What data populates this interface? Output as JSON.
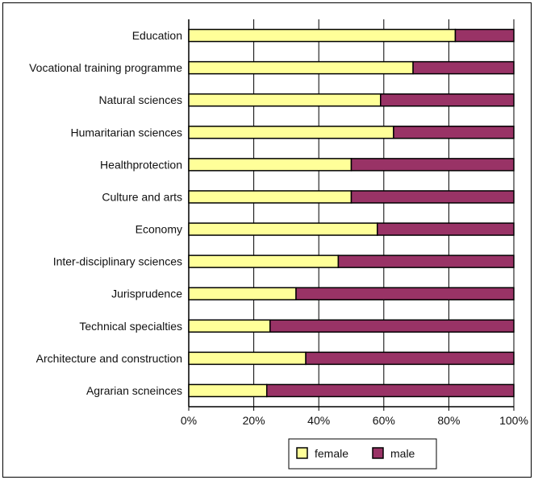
{
  "chart_data": {
    "type": "bar",
    "orientation": "horizontal",
    "stacked": "percent",
    "title": "",
    "xlabel": "",
    "ylabel": "",
    "xlim": [
      0,
      100
    ],
    "x_ticks": [
      "0%",
      "20%",
      "40%",
      "60%",
      "80%",
      "100%"
    ],
    "grid": "vertical",
    "legend_position": "bottom",
    "categories": [
      "Education",
      "Vocational training programme",
      "Natural sciences",
      "Humaritarian sciences",
      "Healthprotection",
      "Culture and arts",
      "Economy",
      "Inter-disciplinary sciences",
      "Jurisprudence",
      "Technical specialties",
      "Architecture and construction",
      "Agrarian scneinces"
    ],
    "series": [
      {
        "name": "female",
        "color": "#ffff99",
        "values": [
          82,
          69,
          59,
          63,
          50,
          50,
          58,
          46,
          33,
          25,
          36,
          24
        ]
      },
      {
        "name": "male",
        "color": "#993366",
        "values": [
          18,
          31,
          41,
          37,
          50,
          50,
          42,
          54,
          67,
          75,
          64,
          76
        ]
      }
    ]
  }
}
